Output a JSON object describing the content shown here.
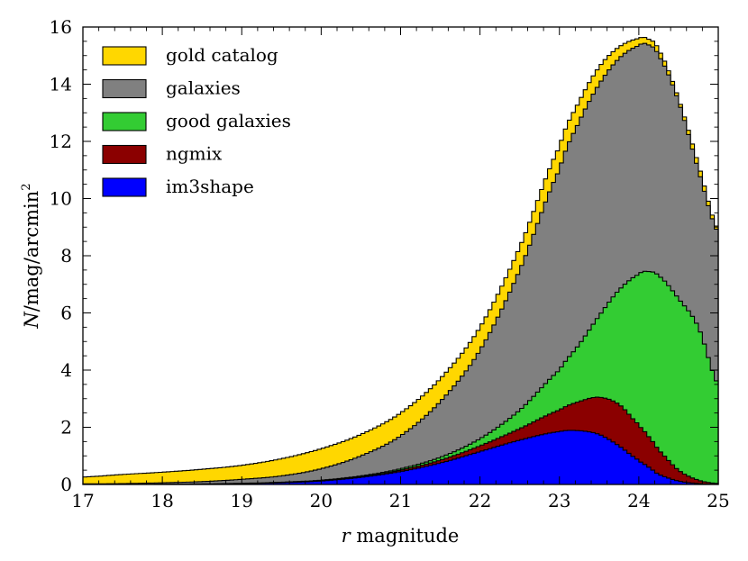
{
  "chart_data": {
    "type": "area",
    "xlabel_var": "r",
    "xlabel_rest": "magnitude",
    "ylabel_main": "N/mag/arcmin",
    "ylabel_sup": "2",
    "xlim": [
      17,
      25
    ],
    "ylim": [
      0,
      16
    ],
    "xticks": [
      17,
      18,
      19,
      20,
      21,
      22,
      23,
      24,
      25
    ],
    "yticks": [
      0,
      2,
      4,
      6,
      8,
      10,
      12,
      14,
      16
    ],
    "xtick_labels": [
      "17",
      "18",
      "19",
      "20",
      "21",
      "22",
      "23",
      "24",
      "25"
    ],
    "ytick_labels": [
      "0",
      "2",
      "4",
      "6",
      "8",
      "10",
      "12",
      "14",
      "16"
    ],
    "legend_position": "top-left",
    "x": [
      17.0,
      17.5,
      18.0,
      18.5,
      19.0,
      19.5,
      20.0,
      20.5,
      21.0,
      21.5,
      22.0,
      22.5,
      23.0,
      23.25,
      23.5,
      23.75,
      24.0,
      24.1,
      24.25,
      24.5,
      24.75,
      25.0
    ],
    "series": [
      {
        "name": "gold catalog",
        "color": "#ffd700",
        "values": [
          0.26,
          0.35,
          0.43,
          0.53,
          0.67,
          0.9,
          1.25,
          1.75,
          2.5,
          3.7,
          5.5,
          8.3,
          11.8,
          13.4,
          14.6,
          15.3,
          15.6,
          15.6,
          15.2,
          13.5,
          11.2,
          8.9
        ]
      },
      {
        "name": "galaxies",
        "color": "#808080",
        "values": [
          0.02,
          0.03,
          0.06,
          0.1,
          0.18,
          0.3,
          0.55,
          1.0,
          1.7,
          2.9,
          4.7,
          7.5,
          11.0,
          12.7,
          14.0,
          14.9,
          15.35,
          15.4,
          15.0,
          13.4,
          11.0,
          8.8
        ]
      },
      {
        "name": "good galaxies",
        "color": "#33cc33",
        "values": [
          0.0,
          0.0,
          0.01,
          0.02,
          0.04,
          0.08,
          0.15,
          0.3,
          0.55,
          0.95,
          1.6,
          2.6,
          4.0,
          4.9,
          5.9,
          6.8,
          7.35,
          7.45,
          7.3,
          6.5,
          5.5,
          3.5
        ]
      },
      {
        "name": "ngmix",
        "color": "#8b0000",
        "values": [
          0.0,
          0.0,
          0.0,
          0.01,
          0.03,
          0.06,
          0.13,
          0.27,
          0.5,
          0.85,
          1.35,
          1.95,
          2.6,
          2.9,
          3.05,
          2.8,
          2.1,
          1.75,
          1.2,
          0.5,
          0.15,
          0.03
        ]
      },
      {
        "name": "im3shape",
        "color": "#0000ff",
        "values": [
          0.0,
          0.0,
          0.0,
          0.01,
          0.03,
          0.06,
          0.12,
          0.25,
          0.45,
          0.75,
          1.15,
          1.55,
          1.85,
          1.88,
          1.75,
          1.35,
          0.85,
          0.65,
          0.35,
          0.12,
          0.03,
          0.0
        ]
      }
    ]
  }
}
